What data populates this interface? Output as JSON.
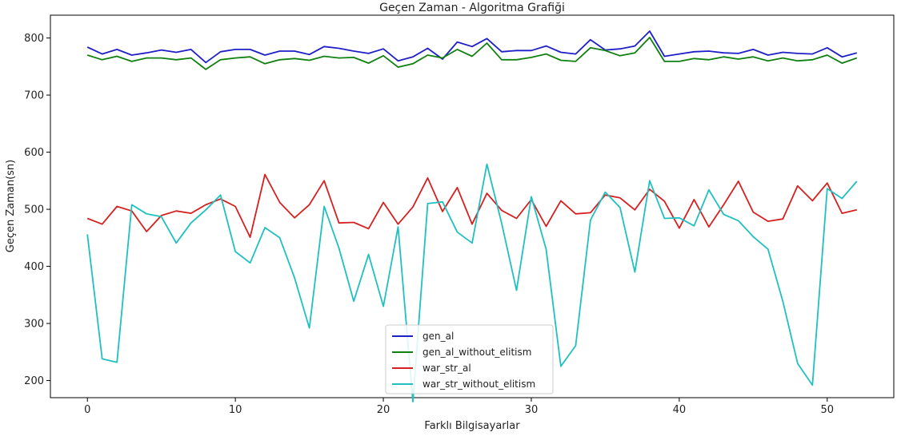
{
  "chart_data": {
    "type": "line",
    "title": "Geçen Zaman - Algoritma Grafiği",
    "xlabel": "Farklı Bilgisayarlar",
    "ylabel": "Geçen Zaman(sn)",
    "xlim": [
      -2.5,
      54.5
    ],
    "ylim": [
      170,
      840
    ],
    "xticks": [
      0,
      10,
      20,
      30,
      40,
      50
    ],
    "yticks": [
      200,
      300,
      400,
      500,
      600,
      700,
      800
    ],
    "grid": false,
    "legend_position": "bottom-center",
    "x": [
      0,
      1,
      2,
      3,
      4,
      5,
      6,
      7,
      8,
      9,
      10,
      11,
      12,
      13,
      14,
      15,
      16,
      17,
      18,
      19,
      20,
      21,
      22,
      23,
      24,
      25,
      26,
      27,
      28,
      29,
      30,
      31,
      32,
      33,
      34,
      35,
      36,
      37,
      38,
      39,
      40,
      41,
      42,
      43,
      44,
      45,
      46,
      47,
      48,
      49,
      50,
      51,
      52
    ],
    "series": [
      {
        "name": "gen_al",
        "color": "#1f1fc8",
        "values": [
          784,
          772,
          780,
          770,
          774,
          779,
          775,
          780,
          757,
          776,
          780,
          780,
          770,
          777,
          777,
          771,
          785,
          782,
          777,
          773,
          781,
          760,
          767,
          782,
          763,
          793,
          785,
          799,
          776,
          778,
          778,
          786,
          775,
          772,
          797,
          779,
          781,
          786,
          812,
          768,
          772,
          776,
          777,
          774,
          773,
          780,
          770,
          775,
          773,
          772,
          783,
          767,
          774
        ]
      },
      {
        "name": "gen_al_without_elitism",
        "color": "#108010",
        "values": [
          770,
          762,
          768,
          759,
          765,
          765,
          762,
          765,
          745,
          762,
          765,
          767,
          755,
          762,
          764,
          761,
          768,
          765,
          766,
          756,
          769,
          749,
          755,
          770,
          765,
          780,
          768,
          791,
          762,
          762,
          766,
          772,
          761,
          759,
          783,
          778,
          769,
          774,
          801,
          759,
          759,
          764,
          762,
          767,
          763,
          767,
          760,
          765,
          760,
          762,
          770,
          756,
          765
        ]
      },
      {
        "name": "war_str_al",
        "color": "#d62020",
        "values": [
          484,
          474,
          505,
          497,
          461,
          489,
          497,
          493,
          508,
          518,
          505,
          451,
          561,
          512,
          485,
          508,
          550,
          476,
          477,
          466,
          512,
          474,
          504,
          555,
          496,
          538,
          474,
          528,
          498,
          484,
          517,
          470,
          515,
          492,
          494,
          525,
          520,
          499,
          535,
          514,
          467,
          517,
          469,
          508,
          549,
          495,
          479,
          483,
          541,
          515,
          546,
          493,
          499
        ]
      },
      {
        "name": "war_str_without_elitism",
        "color": "#20c0c0",
        "values": [
          456,
          238,
          232,
          508,
          492,
          487,
          441,
          476,
          499,
          525,
          426,
          406,
          468,
          450,
          380,
          292,
          505,
          432,
          339,
          421,
          330,
          469,
          163,
          510,
          513,
          460,
          441,
          579,
          475,
          358,
          522,
          430,
          225,
          261,
          481,
          530,
          503,
          390,
          550,
          484,
          485,
          471,
          534,
          491,
          480,
          452,
          430,
          339,
          230,
          192,
          536,
          519,
          549
        ]
      }
    ]
  }
}
